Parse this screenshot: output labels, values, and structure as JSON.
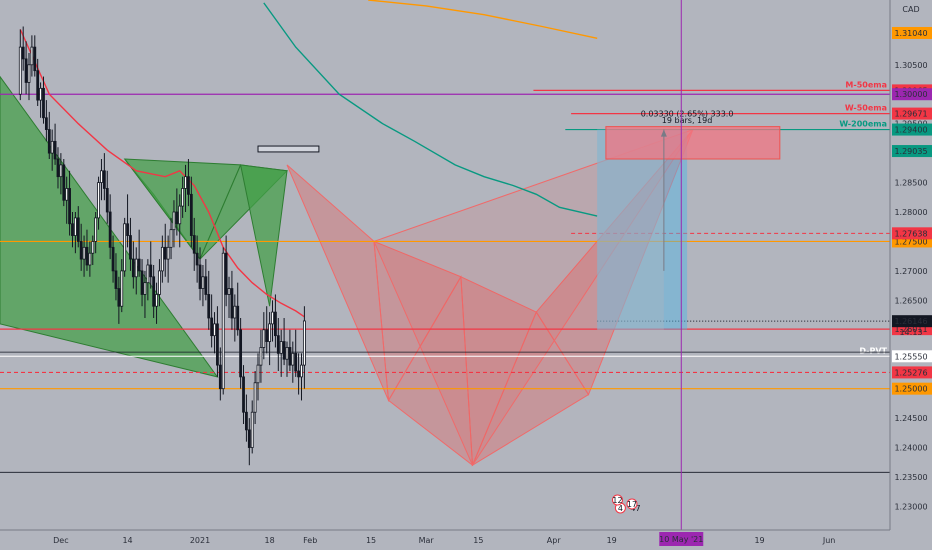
{
  "chart_data": {
    "type": "candlestick",
    "title": "",
    "xlabel": "",
    "ylabel": "",
    "currency": "CAD",
    "ylim": [
      1.226,
      1.316
    ],
    "y_ticks": [
      "1.30500",
      "1.29500",
      "1.28500",
      "1.28000",
      "1.27000",
      "1.26500",
      "1.24500",
      "1.24000",
      "1.23500",
      "1.23000"
    ],
    "x_ticks": [
      "Dec",
      "14",
      "2021",
      "18",
      "Feb",
      "15",
      "Mar",
      "15",
      "Apr",
      "19",
      "May",
      "19",
      "Jun"
    ],
    "x_tick_values": [
      14,
      37,
      62,
      86,
      100,
      121,
      140,
      158,
      184,
      204,
      228,
      255,
      279
    ],
    "x_range": [
      -7,
      300
    ],
    "grid": false,
    "legend": "none",
    "candles_generated_note": "",
    "candles": [
      [
        0,
        1.3,
        1.311,
        1.299,
        1.308
      ],
      [
        1,
        1.308,
        1.3115,
        1.304,
        1.306
      ],
      [
        2,
        1.306,
        1.309,
        1.3,
        1.302
      ],
      [
        3,
        1.302,
        1.307,
        1.299,
        1.305
      ],
      [
        4,
        1.305,
        1.31,
        1.303,
        1.308
      ],
      [
        5,
        1.308,
        1.31,
        1.303,
        1.304
      ],
      [
        6,
        1.304,
        1.306,
        1.298,
        1.299
      ],
      [
        7,
        1.299,
        1.302,
        1.296,
        1.301
      ],
      [
        8,
        1.301,
        1.303,
        1.295,
        1.296
      ],
      [
        9,
        1.296,
        1.299,
        1.292,
        1.294
      ],
      [
        10,
        1.294,
        1.297,
        1.289,
        1.29
      ],
      [
        11,
        1.29,
        1.294,
        1.287,
        1.292
      ],
      [
        12,
        1.292,
        1.295,
        1.288,
        1.289
      ],
      [
        13,
        1.289,
        1.291,
        1.284,
        1.286
      ],
      [
        14,
        1.286,
        1.29,
        1.283,
        1.288
      ],
      [
        15,
        1.288,
        1.289,
        1.281,
        1.282
      ],
      [
        16,
        1.282,
        1.286,
        1.278,
        1.284
      ],
      [
        17,
        1.284,
        1.287,
        1.276,
        1.278
      ],
      [
        18,
        1.278,
        1.28,
        1.274,
        1.276
      ],
      [
        19,
        1.276,
        1.28,
        1.273,
        1.279
      ],
      [
        20,
        1.279,
        1.281,
        1.274,
        1.275
      ],
      [
        21,
        1.275,
        1.278,
        1.27,
        1.272
      ],
      [
        22,
        1.272,
        1.276,
        1.269,
        1.274
      ],
      [
        23,
        1.274,
        1.277,
        1.27,
        1.271
      ],
      [
        24,
        1.271,
        1.275,
        1.269,
        1.273
      ],
      [
        25,
        1.273,
        1.276,
        1.271,
        1.275
      ],
      [
        26,
        1.275,
        1.28,
        1.273,
        1.279
      ],
      [
        27,
        1.279,
        1.286,
        1.277,
        1.285
      ],
      [
        28,
        1.285,
        1.289,
        1.282,
        1.287
      ],
      [
        29,
        1.287,
        1.29,
        1.282,
        1.284
      ],
      [
        30,
        1.284,
        1.287,
        1.278,
        1.28
      ],
      [
        31,
        1.28,
        1.283,
        1.272,
        1.274
      ],
      [
        32,
        1.274,
        1.276,
        1.268,
        1.27
      ],
      [
        33,
        1.27,
        1.273,
        1.265,
        1.267
      ],
      [
        34,
        1.267,
        1.269,
        1.261,
        1.264
      ],
      [
        35,
        1.264,
        1.272,
        1.263,
        1.27
      ],
      [
        36,
        1.27,
        1.279,
        1.269,
        1.278
      ],
      [
        37,
        1.278,
        1.283,
        1.274,
        1.276
      ],
      [
        38,
        1.276,
        1.279,
        1.27,
        1.272
      ],
      [
        39,
        1.272,
        1.275,
        1.267,
        1.269
      ],
      [
        40,
        1.269,
        1.274,
        1.266,
        1.272
      ],
      [
        41,
        1.272,
        1.277,
        1.269,
        1.27
      ],
      [
        42,
        1.27,
        1.272,
        1.264,
        1.266
      ],
      [
        43,
        1.266,
        1.27,
        1.262,
        1.268
      ],
      [
        44,
        1.268,
        1.272,
        1.265,
        1.271
      ],
      [
        45,
        1.271,
        1.275,
        1.267,
        1.269
      ],
      [
        46,
        1.269,
        1.271,
        1.262,
        1.264
      ],
      [
        47,
        1.264,
        1.268,
        1.261,
        1.266
      ],
      [
        48,
        1.266,
        1.272,
        1.264,
        1.27
      ],
      [
        49,
        1.27,
        1.276,
        1.268,
        1.274
      ],
      [
        50,
        1.274,
        1.278,
        1.269,
        1.272
      ],
      [
        51,
        1.272,
        1.276,
        1.268,
        1.274
      ],
      [
        52,
        1.274,
        1.279,
        1.272,
        1.277
      ],
      [
        53,
        1.277,
        1.282,
        1.274,
        1.28
      ],
      [
        54,
        1.28,
        1.284,
        1.276,
        1.278
      ],
      [
        55,
        1.278,
        1.283,
        1.274,
        1.281
      ],
      [
        56,
        1.281,
        1.286,
        1.279,
        1.284
      ],
      [
        57,
        1.284,
        1.288,
        1.28,
        1.286
      ],
      [
        58,
        1.286,
        1.289,
        1.281,
        1.283
      ],
      [
        59,
        1.283,
        1.286,
        1.274,
        1.276
      ],
      [
        60,
        1.276,
        1.279,
        1.27,
        1.273
      ],
      [
        61,
        1.273,
        1.276,
        1.268,
        1.271
      ],
      [
        62,
        1.271,
        1.274,
        1.265,
        1.267
      ],
      [
        63,
        1.267,
        1.271,
        1.264,
        1.269
      ],
      [
        64,
        1.269,
        1.272,
        1.265,
        1.266
      ],
      [
        65,
        1.266,
        1.27,
        1.26,
        1.262
      ],
      [
        66,
        1.262,
        1.266,
        1.257,
        1.259
      ],
      [
        67,
        1.259,
        1.263,
        1.256,
        1.261
      ],
      [
        68,
        1.261,
        1.264,
        1.252,
        1.254
      ],
      [
        69,
        1.254,
        1.257,
        1.248,
        1.25
      ],
      [
        70,
        1.25,
        1.274,
        1.249,
        1.273
      ],
      [
        71,
        1.273,
        1.276,
        1.264,
        1.266
      ],
      [
        72,
        1.266,
        1.269,
        1.262,
        1.267
      ],
      [
        73,
        1.267,
        1.27,
        1.26,
        1.262
      ],
      [
        74,
        1.262,
        1.266,
        1.258,
        1.264
      ],
      [
        75,
        1.264,
        1.268,
        1.259,
        1.26
      ],
      [
        76,
        1.26,
        1.262,
        1.25,
        1.252
      ],
      [
        77,
        1.252,
        1.254,
        1.244,
        1.246
      ],
      [
        78,
        1.246,
        1.249,
        1.241,
        1.243
      ],
      [
        79,
        1.243,
        1.245,
        1.237,
        1.24
      ],
      [
        80,
        1.24,
        1.248,
        1.239,
        1.246
      ],
      [
        81,
        1.246,
        1.253,
        1.244,
        1.251
      ],
      [
        82,
        1.251,
        1.256,
        1.248,
        1.254
      ],
      [
        83,
        1.254,
        1.26,
        1.251,
        1.257
      ],
      [
        84,
        1.257,
        1.263,
        1.255,
        1.26
      ],
      [
        85,
        1.26,
        1.264,
        1.256,
        1.258
      ],
      [
        86,
        1.258,
        1.263,
        1.254,
        1.261
      ],
      [
        87,
        1.261,
        1.265,
        1.258,
        1.263
      ],
      [
        88,
        1.263,
        1.266,
        1.257,
        1.259
      ],
      [
        89,
        1.259,
        1.262,
        1.253,
        1.256
      ],
      [
        90,
        1.256,
        1.26,
        1.252,
        1.258
      ],
      [
        91,
        1.258,
        1.262,
        1.254,
        1.255
      ],
      [
        92,
        1.255,
        1.258,
        1.252,
        1.257
      ],
      [
        93,
        1.257,
        1.26,
        1.253,
        1.254
      ],
      [
        94,
        1.254,
        1.258,
        1.251,
        1.256
      ],
      [
        95,
        1.256,
        1.26,
        1.252,
        1.253
      ],
      [
        96,
        1.253,
        1.256,
        1.249,
        1.252
      ],
      [
        97,
        1.252,
        1.256,
        1.248,
        1.254
      ],
      [
        98,
        1.254,
        1.264,
        1.25,
        1.2615
      ]
    ],
    "series": [
      {
        "color": "#f23645",
        "width": 1.4,
        "points": [
          [
            0,
            1.311
          ],
          [
            10,
            1.3
          ],
          [
            20,
            1.295
          ],
          [
            30,
            1.2905
          ],
          [
            40,
            1.287
          ],
          [
            50,
            1.286
          ],
          [
            55,
            1.287
          ],
          [
            60,
            1.2845
          ],
          [
            65,
            1.28
          ],
          [
            70,
            1.274
          ],
          [
            75,
            1.2705
          ],
          [
            80,
            1.268
          ],
          [
            85,
            1.266
          ],
          [
            90,
            1.2645
          ],
          [
            95,
            1.2632
          ],
          [
            98,
            1.2622
          ]
        ]
      },
      {
        "color": "#089981",
        "width": 1.4,
        "points": [
          [
            84,
            1.3155
          ],
          [
            95,
            1.308
          ],
          [
            110,
            1.3
          ],
          [
            125,
            1.295
          ],
          [
            136,
            1.292
          ],
          [
            150,
            1.288
          ],
          [
            160,
            1.286
          ],
          [
            170,
            1.2845
          ],
          [
            178,
            1.283
          ],
          [
            186,
            1.2808
          ],
          [
            199,
            1.2793
          ]
        ]
      },
      {
        "color": "#ff9800",
        "width": 1.4,
        "points": [
          [
            120,
            1.316
          ],
          [
            140,
            1.315
          ],
          [
            160,
            1.3135
          ],
          [
            180,
            1.3115
          ],
          [
            199,
            1.3095
          ]
        ]
      }
    ],
    "horizontal_levels": [
      {
        "y": 1.30065,
        "label": "M-50ema",
        "value_text": "1.30065",
        "color": "#f23645",
        "x_from": 177,
        "badge": "#f23645",
        "label_color": "#f23645"
      },
      {
        "y": 1.3,
        "label": "",
        "value_text": "1.30000",
        "color": "#9c27b0",
        "x_from": -7,
        "badge": "#9c27b0",
        "label_color": "#9c27b0"
      },
      {
        "y": 1.29671,
        "label": "W-50ema",
        "value_text": "1.29671",
        "color": "#f23645",
        "x_from": 190,
        "badge": "#f23645",
        "label_color": "#f23645"
      },
      {
        "y": 1.294,
        "label": "W-200ema",
        "value_text": "1.29400",
        "color": "#089981",
        "x_from": 188,
        "badge": "#089981",
        "label_color": "#089981"
      },
      {
        "y": 1.275,
        "label": "",
        "value_text": "1.27500",
        "color": "#ff9800",
        "x_from": -7,
        "badge": "#ff9800",
        "label_color": "#ff9800"
      },
      {
        "y": 1.26011,
        "label": "",
        "value_text": "1.26011",
        "color": "#f23645",
        "x_from": -7,
        "badge": "#f23645",
        "label_color": "#f23645"
      },
      {
        "y": 1.2555,
        "label": "D-PVT",
        "value_text": "1.25550",
        "color": "#ffffff",
        "x_from": -7,
        "badge": "#ffffff",
        "label_color": "#ffffff"
      },
      {
        "y": 1.25276,
        "label": "",
        "value_text": "1.25276",
        "color": "#f23645",
        "x_from": -7,
        "badge": "#f23645",
        "label_color": "#f23645"
      },
      {
        "y": 1.25,
        "label": "",
        "value_text": "1.25000",
        "color": "#ff9800",
        "x_from": -7,
        "badge": "#ff9800",
        "label_color": "#ff9800"
      }
    ],
    "extra_badges": [
      {
        "y": 1.3104,
        "value_text": "1.31040",
        "color": "#ff9800",
        "text_color": "#ffffff"
      },
      {
        "y": 1.29035,
        "value_text": "1.29035",
        "color": "#089981",
        "text_color": "#ffffff"
      },
      {
        "y": 1.27638,
        "value_text": "1.27638",
        "color": "#f23645",
        "text_color": "#ffffff"
      },
      {
        "y": 1.26146,
        "value_text": "1.26146",
        "color": "#131722",
        "text_color": "#ffffff",
        "sub": "14:13"
      }
    ],
    "measure": {
      "line1": "0.03330 (2.65%) 333.0",
      "line2": "19 bars, 19d"
    },
    "vertical_marker": {
      "x": 228,
      "label": "10 May '21",
      "color": "#9c27b0"
    },
    "event_icons": [
      {
        "x": 207,
        "label": "4",
        "count": "47"
      },
      {
        "x": 211,
        "label": "17",
        "count": ""
      },
      {
        "x": 206,
        "label": "12",
        "count": ""
      }
    ]
  }
}
